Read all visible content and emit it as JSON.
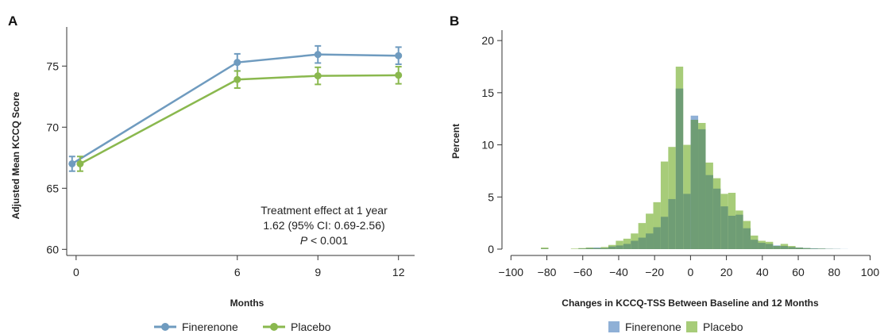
{
  "colors": {
    "finerenone": "#6f9bbf",
    "placebo": "#8ab84e",
    "hist_finerenone": "#8fb0d6",
    "hist_placebo": "#a7cc79",
    "hist_overlap": "#6f9d75"
  },
  "chart_data": [
    {
      "panel": "A",
      "type": "line",
      "ylabel": "Adjusted Mean KCCQ Score",
      "xlabel": "Months",
      "x": [
        0,
        6,
        9,
        12
      ],
      "x_ticks": [
        "0",
        "6",
        "9",
        "12"
      ],
      "y_ticks": [
        "60",
        "65",
        "70",
        "75"
      ],
      "ylim": [
        59.5,
        78.2
      ],
      "xlim": [
        -0.35,
        12.6
      ],
      "grid": false,
      "legend_position": "bottom",
      "series": [
        {
          "name": "Finerenone",
          "values": [
            67.0,
            75.3,
            75.95,
            75.85
          ],
          "err": [
            0.6,
            0.7,
            0.7,
            0.7
          ]
        },
        {
          "name": "Placebo",
          "values": [
            67.0,
            73.9,
            74.2,
            74.25
          ],
          "err": [
            0.6,
            0.7,
            0.7,
            0.7
          ]
        }
      ],
      "annotation": {
        "line1": "Treatment effect at 1 year",
        "line2": "1.62 (95% CI: 0.69-2.56)",
        "p_italic": "P",
        "p_rest": " < 0.001"
      }
    },
    {
      "panel": "B",
      "type": "histogram",
      "ylabel": "Percent",
      "xlabel": "Changes in KCCQ-TSS Between Baseline and 12 Months",
      "x_ticks": [
        "−100",
        "−80",
        "−60",
        "−40",
        "−20",
        "0",
        "20",
        "40",
        "60",
        "80",
        "100"
      ],
      "x_tick_values": [
        -100,
        -80,
        -60,
        -40,
        -20,
        0,
        20,
        40,
        60,
        80,
        100
      ],
      "y_ticks": [
        "0",
        "5",
        "10",
        "15",
        "20"
      ],
      "xlim": [
        -105,
        102
      ],
      "ylim": [
        0,
        21
      ],
      "grid": false,
      "legend_position": "bottom",
      "bin_width": 4.17,
      "bin_edges_start": -83.3,
      "series": [
        {
          "name": "Finerenone",
          "values": [
            0.05,
            0,
            0,
            0,
            0,
            0.05,
            0.1,
            0.15,
            0.1,
            0.25,
            0.35,
            0.5,
            0.8,
            1.1,
            1.5,
            2.1,
            3.1,
            4.8,
            15.4,
            5.3,
            12.8,
            11.5,
            7.1,
            5.8,
            4.1,
            3.2,
            3.3,
            2.0,
            0.9,
            0.6,
            0.5,
            0.35,
            0.3,
            0.2,
            0.15,
            0.1,
            0.08,
            0.05,
            0.03,
            0.02,
            0.01,
            0,
            0,
            0
          ]
        },
        {
          "name": "Placebo",
          "values": [
            0.15,
            0,
            0,
            0,
            0.05,
            0.1,
            0.15,
            0.1,
            0.2,
            0.4,
            0.8,
            1.0,
            1.5,
            2.5,
            3.4,
            4.5,
            8.4,
            9.8,
            17.5,
            10.0,
            12.4,
            12.1,
            8.3,
            6.8,
            5.3,
            5.4,
            3.7,
            2.7,
            1.3,
            0.8,
            0.7,
            0.3,
            0.5,
            0.3,
            0.15,
            0.1,
            0.05,
            0.05,
            0.02,
            0.01,
            0,
            0,
            0,
            0
          ]
        }
      ]
    }
  ]
}
